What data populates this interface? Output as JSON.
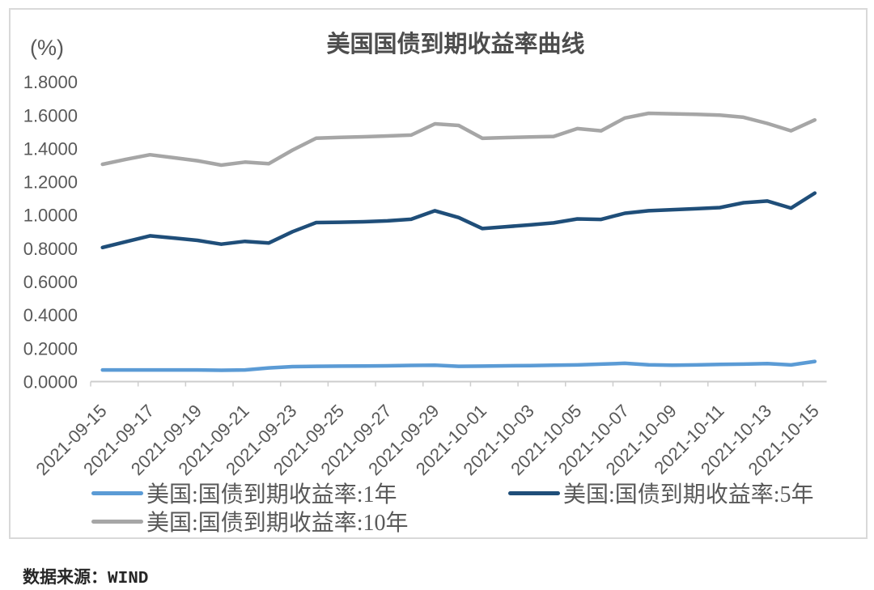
{
  "chart_data": {
    "type": "line",
    "title": "美国国债到期收益率曲线",
    "unit_label": "(%)",
    "source_label": "数据来源：WIND",
    "ylim": [
      0,
      1.8
    ],
    "y_ticks": [
      "0.0000",
      "0.2000",
      "0.4000",
      "0.6000",
      "0.8000",
      "1.0000",
      "1.2000",
      "1.4000",
      "1.6000",
      "1.8000"
    ],
    "x": [
      "2021-09-15",
      "2021-09-16",
      "2021-09-17",
      "2021-09-18",
      "2021-09-19",
      "2021-09-20",
      "2021-09-21",
      "2021-09-22",
      "2021-09-23",
      "2021-09-24",
      "2021-09-25",
      "2021-09-26",
      "2021-09-27",
      "2021-09-28",
      "2021-09-29",
      "2021-09-30",
      "2021-10-01",
      "2021-10-02",
      "2021-10-03",
      "2021-10-04",
      "2021-10-05",
      "2021-10-06",
      "2021-10-07",
      "2021-10-08",
      "2021-10-09",
      "2021-10-10",
      "2021-10-11",
      "2021-10-12",
      "2021-10-13",
      "2021-10-14",
      "2021-10-15"
    ],
    "x_tick_labels": [
      "2021-09-15",
      "2021-09-17",
      "2021-09-19",
      "2021-09-21",
      "2021-09-23",
      "2021-09-25",
      "2021-09-27",
      "2021-09-29",
      "2021-10-01",
      "2021-10-03",
      "2021-10-05",
      "2021-10-07",
      "2021-10-09",
      "2021-10-11",
      "2021-10-13",
      "2021-10-15"
    ],
    "legend_position": "bottom",
    "grid": false,
    "series": [
      {
        "name": "美国:国债到期收益率:1年",
        "color": "#5B9BD5",
        "values": [
          0.07,
          0.07,
          0.07,
          0.07,
          0.07,
          0.068,
          0.07,
          0.082,
          0.09,
          0.092,
          0.093,
          0.094,
          0.095,
          0.097,
          0.098,
          0.092,
          0.093,
          0.095,
          0.096,
          0.098,
          0.1,
          0.105,
          0.11,
          0.101,
          0.098,
          0.1,
          0.103,
          0.105,
          0.108,
          0.1,
          0.121
        ]
      },
      {
        "name": "美国:国债到期收益率:5年",
        "color": "#1F4E79",
        "values": [
          0.805,
          0.84,
          0.875,
          0.862,
          0.848,
          0.825,
          0.842,
          0.832,
          0.9,
          0.955,
          0.957,
          0.96,
          0.965,
          0.975,
          1.026,
          0.985,
          0.919,
          0.93,
          0.941,
          0.953,
          0.977,
          0.974,
          1.011,
          1.026,
          1.032,
          1.038,
          1.045,
          1.074,
          1.084,
          1.042,
          1.132
        ]
      },
      {
        "name": "美国:国债到期收益率:10年",
        "color": "#A6A6A6",
        "values": [
          1.305,
          1.335,
          1.362,
          1.344,
          1.326,
          1.3,
          1.318,
          1.308,
          1.39,
          1.462,
          1.466,
          1.47,
          1.475,
          1.48,
          1.548,
          1.538,
          1.461,
          1.465,
          1.469,
          1.472,
          1.519,
          1.506,
          1.583,
          1.611,
          1.608,
          1.605,
          1.6,
          1.587,
          1.55,
          1.506,
          1.571
        ]
      }
    ],
    "axis_color": "#CDCDCD",
    "tick_text_color": "#595959"
  }
}
